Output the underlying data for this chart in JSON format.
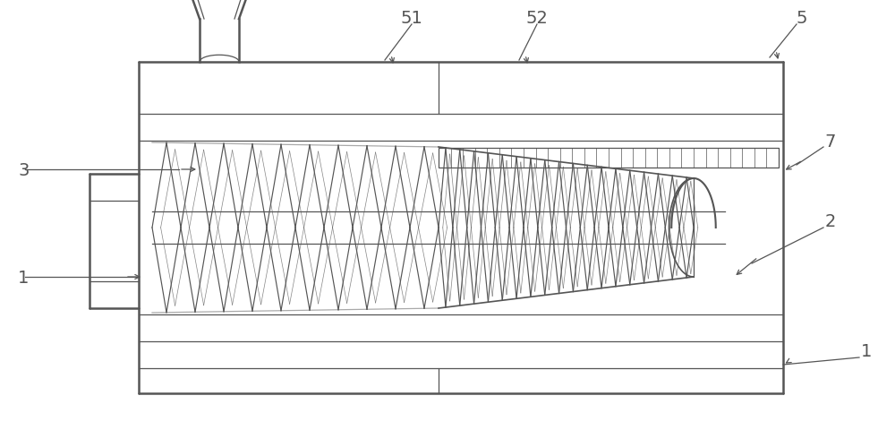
{
  "bg_color": "#ffffff",
  "line_color": "#555555",
  "lw_main": 1.8,
  "lw_thin": 0.9,
  "lw_screw": 0.85,
  "fig_w": 10.0,
  "fig_h": 4.81,
  "dpi": 100
}
